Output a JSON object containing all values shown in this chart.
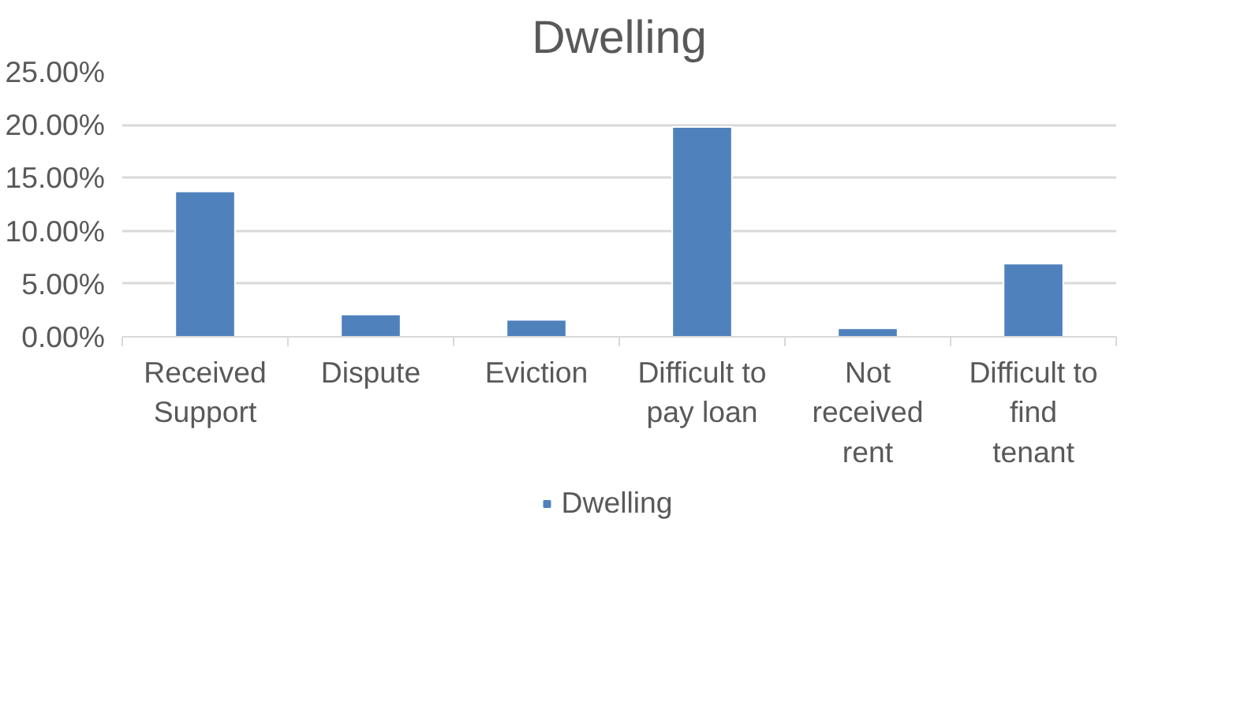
{
  "chart_data": {
    "type": "bar",
    "title": "Dwelling",
    "categories": [
      "Received\nSupport",
      "Dispute",
      "Eviction",
      "Difficult to\npay loan",
      "Not\nreceived\nrent",
      "Difficult to\nfind\ntenant"
    ],
    "series": [
      {
        "name": "Dwelling",
        "color": "#4f81bd",
        "values": [
          13.7,
          2.1,
          1.6,
          19.8,
          0.8,
          6.9
        ]
      }
    ],
    "ylim": [
      0,
      25
    ],
    "yticks": [
      {
        "value": 0,
        "label": "0.00%"
      },
      {
        "value": 5,
        "label": "5.00%"
      },
      {
        "value": 10,
        "label": "10.00%"
      },
      {
        "value": 15,
        "label": "15.00%"
      },
      {
        "value": 20,
        "label": "20.00%"
      },
      {
        "value": 25,
        "label": "25.00%"
      }
    ],
    "grid": "y",
    "legend": "bottom"
  }
}
